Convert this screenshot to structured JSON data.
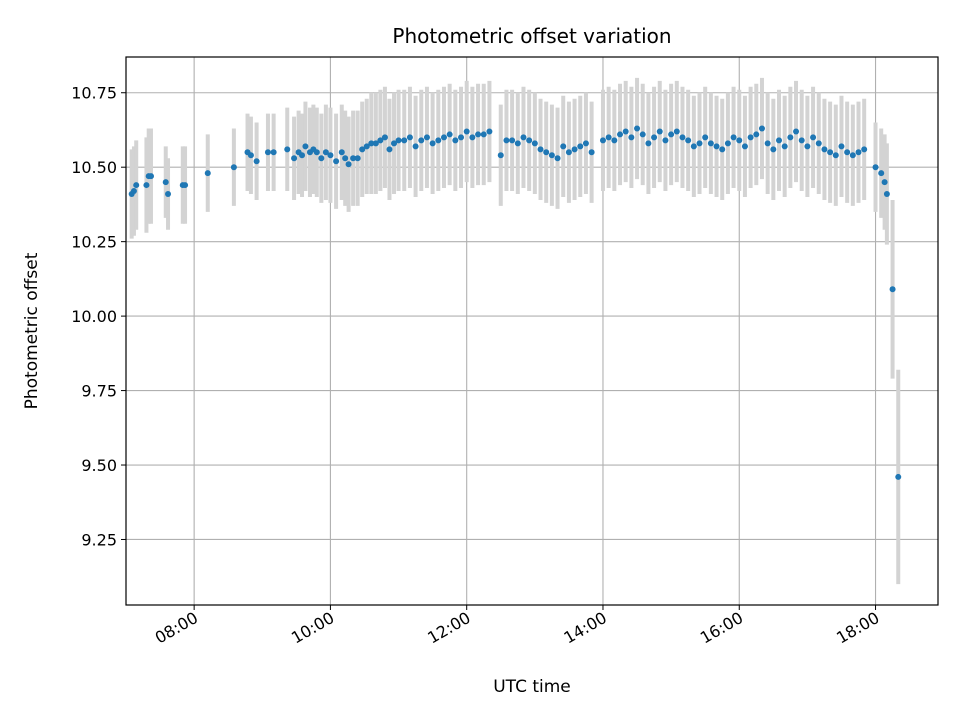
{
  "chart_data": {
    "type": "scatter",
    "title": "Photometric offset variation",
    "xlabel": "UTC time",
    "ylabel": "Photometric offset",
    "xlim": [
      "07:00",
      "18:55"
    ],
    "ylim": [
      9.03,
      10.87
    ],
    "x_ticks": [
      "08:00",
      "10:00",
      "12:00",
      "14:00",
      "16:00",
      "18:00"
    ],
    "y_ticks": [
      "9.25",
      "9.50",
      "9.75",
      "10.00",
      "10.25",
      "10.50",
      "10.75"
    ],
    "grid": true,
    "colors": {
      "marker": "#1f77b4",
      "errorbar": "#d3d3d3",
      "grid": "#b0b0b0"
    },
    "series": [
      {
        "x": [
          "07:05",
          "07:07",
          "07:09",
          "07:18",
          "07:20",
          "07:22",
          "07:35",
          "07:37",
          "07:50",
          "07:52",
          "08:12",
          "08:35",
          "08:47",
          "08:50",
          "08:55",
          "09:05",
          "09:10",
          "09:22",
          "09:28",
          "09:32",
          "09:35",
          "09:38",
          "09:42",
          "09:45",
          "09:48",
          "09:52",
          "09:56",
          "10:00",
          "10:05",
          "10:10",
          "10:13",
          "10:16",
          "10:20",
          "10:24",
          "10:28",
          "10:32",
          "10:36",
          "10:40",
          "10:44",
          "10:48",
          "10:52",
          "10:56",
          "11:00",
          "11:05",
          "11:10",
          "11:15",
          "11:20",
          "11:25",
          "11:30",
          "11:35",
          "11:40",
          "11:45",
          "11:50",
          "11:55",
          "12:00",
          "12:05",
          "12:10",
          "12:15",
          "12:20",
          "12:30",
          "12:35",
          "12:40",
          "12:45",
          "12:50",
          "12:55",
          "13:00",
          "13:05",
          "13:10",
          "13:15",
          "13:20",
          "13:25",
          "13:30",
          "13:35",
          "13:40",
          "13:45",
          "13:50",
          "14:00",
          "14:05",
          "14:10",
          "14:15",
          "14:20",
          "14:25",
          "14:30",
          "14:35",
          "14:40",
          "14:45",
          "14:50",
          "14:55",
          "15:00",
          "15:05",
          "15:10",
          "15:15",
          "15:20",
          "15:25",
          "15:30",
          "15:35",
          "15:40",
          "15:45",
          "15:50",
          "15:55",
          "16:00",
          "16:05",
          "16:10",
          "16:15",
          "16:20",
          "16:25",
          "16:30",
          "16:35",
          "16:40",
          "16:45",
          "16:50",
          "16:55",
          "17:00",
          "17:05",
          "17:10",
          "17:15",
          "17:20",
          "17:25",
          "17:30",
          "17:35",
          "17:40",
          "17:45",
          "17:50",
          "18:00",
          "18:05",
          "18:08",
          "18:10",
          "18:15",
          "18:20"
        ],
        "y": [
          10.41,
          10.42,
          10.44,
          10.44,
          10.47,
          10.47,
          10.45,
          10.41,
          10.44,
          10.44,
          10.48,
          10.5,
          10.55,
          10.54,
          10.52,
          10.55,
          10.55,
          10.56,
          10.53,
          10.55,
          10.54,
          10.57,
          10.55,
          10.56,
          10.55,
          10.53,
          10.55,
          10.54,
          10.52,
          10.55,
          10.53,
          10.51,
          10.53,
          10.53,
          10.56,
          10.57,
          10.58,
          10.58,
          10.59,
          10.6,
          10.56,
          10.58,
          10.59,
          10.59,
          10.6,
          10.57,
          10.59,
          10.6,
          10.58,
          10.59,
          10.6,
          10.61,
          10.59,
          10.6,
          10.62,
          10.6,
          10.61,
          10.61,
          10.62,
          10.54,
          10.59,
          10.59,
          10.58,
          10.6,
          10.59,
          10.58,
          10.56,
          10.55,
          10.54,
          10.53,
          10.57,
          10.55,
          10.56,
          10.57,
          10.58,
          10.55,
          10.59,
          10.6,
          10.59,
          10.61,
          10.62,
          10.6,
          10.63,
          10.61,
          10.58,
          10.6,
          10.62,
          10.59,
          10.61,
          10.62,
          10.6,
          10.59,
          10.57,
          10.58,
          10.6,
          10.58,
          10.57,
          10.56,
          10.58,
          10.6,
          10.59,
          10.57,
          10.6,
          10.61,
          10.63,
          10.58,
          10.56,
          10.59,
          10.57,
          10.6,
          10.62,
          10.59,
          10.57,
          10.6,
          10.58,
          10.56,
          10.55,
          10.54,
          10.57,
          10.55,
          10.54,
          10.55,
          10.56,
          10.5,
          10.48,
          10.45,
          10.41,
          10.09,
          9.46
        ],
        "err": [
          0.15,
          0.15,
          0.15,
          0.16,
          0.16,
          0.16,
          0.12,
          0.12,
          0.13,
          0.13,
          0.13,
          0.13,
          0.13,
          0.13,
          0.13,
          0.13,
          0.13,
          0.14,
          0.14,
          0.14,
          0.14,
          0.15,
          0.15,
          0.15,
          0.15,
          0.15,
          0.16,
          0.16,
          0.16,
          0.16,
          0.16,
          0.16,
          0.16,
          0.16,
          0.16,
          0.16,
          0.17,
          0.17,
          0.17,
          0.17,
          0.17,
          0.17,
          0.17,
          0.17,
          0.17,
          0.17,
          0.17,
          0.17,
          0.17,
          0.17,
          0.17,
          0.17,
          0.17,
          0.17,
          0.17,
          0.17,
          0.17,
          0.17,
          0.17,
          0.17,
          0.17,
          0.17,
          0.17,
          0.17,
          0.17,
          0.17,
          0.17,
          0.17,
          0.17,
          0.17,
          0.17,
          0.17,
          0.17,
          0.17,
          0.17,
          0.17,
          0.17,
          0.17,
          0.17,
          0.17,
          0.17,
          0.17,
          0.17,
          0.17,
          0.17,
          0.17,
          0.17,
          0.17,
          0.17,
          0.17,
          0.17,
          0.17,
          0.17,
          0.17,
          0.17,
          0.17,
          0.17,
          0.17,
          0.17,
          0.17,
          0.17,
          0.17,
          0.17,
          0.17,
          0.17,
          0.17,
          0.17,
          0.17,
          0.17,
          0.17,
          0.17,
          0.17,
          0.17,
          0.17,
          0.17,
          0.17,
          0.17,
          0.17,
          0.17,
          0.17,
          0.17,
          0.17,
          0.17,
          0.15,
          0.15,
          0.16,
          0.17,
          0.3,
          0.36
        ]
      }
    ]
  }
}
